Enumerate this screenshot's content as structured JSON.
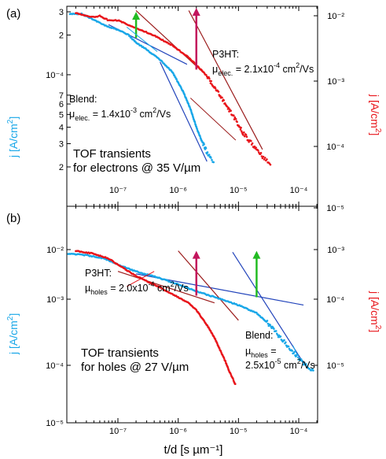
{
  "chart_data": [
    {
      "type": "scatter",
      "panel_label": "(a)",
      "xscale": "log",
      "yscale": "log",
      "xlim": [
        1.5e-08,
        0.0002
      ],
      "ylim_left": [
        1.5e-05,
        0.0003
      ],
      "ylim_right": [
        8e-06,
        0.015
      ],
      "ylabel_left": "j [A/cm²]",
      "ylabel_right": "j [A/cm²]",
      "left_ytick_labels": [
        "2",
        "3",
        "4",
        "5",
        "6",
        "7",
        "10⁻⁴",
        "2",
        "3"
      ],
      "right_ytick_labels": [
        "10⁻⁴",
        "10⁻³",
        "10⁻²"
      ],
      "xtick_labels": [
        "10⁻⁷",
        "10⁻⁶",
        "10⁻⁵",
        "10⁻⁴"
      ],
      "colors": {
        "blend": "#19a7e8",
        "p3ht": "#e8141a",
        "fit_blend": "#2244bb",
        "fit_p3ht": "#9b1c1c",
        "arrow_blend": "#22bb22",
        "arrow_p3ht": "#c3155d"
      },
      "series": [
        {
          "axis": "left",
          "color": "#19a7e8",
          "points": [
            [
              1.6e-08,
              0.00029
            ],
            [
              2.5e-08,
              0.00029
            ],
            [
              4e-08,
              0.00026
            ],
            [
              7e-08,
              0.00023
            ],
            [
              1e-07,
              0.00022
            ],
            [
              1.5e-07,
              0.0002
            ],
            [
              2e-07,
              0.000175
            ],
            [
              3e-07,
              0.000155
            ],
            [
              5e-07,
              0.00013
            ],
            [
              8e-07,
              0.000105
            ],
            [
              1.2e-06,
              7.5e-05
            ],
            [
              1.6e-06,
              5.5e-05
            ],
            [
              2e-06,
              4e-05
            ],
            [
              2.5e-06,
              3.1e-05
            ],
            [
              3e-06,
              2.6e-05
            ],
            [
              3.5e-06,
              2.3e-05
            ],
            [
              4e-06,
              2.2e-05
            ]
          ]
        },
        {
          "axis": "right",
          "color": "#e8141a",
          "points": [
            [
              2e-08,
              0.011
            ],
            [
              3e-08,
              0.01
            ],
            [
              4e-08,
              0.0095
            ],
            [
              5e-08,
              0.01
            ],
            [
              7e-08,
              0.0085
            ],
            [
              1e-07,
              0.0085
            ],
            [
              2e-07,
              0.0065
            ],
            [
              4e-07,
              0.005
            ],
            [
              8e-07,
              0.0035
            ],
            [
              1.5e-06,
              0.0023
            ],
            [
              3e-06,
              0.0012
            ],
            [
              5e-06,
              0.0006
            ],
            [
              8e-06,
              0.0003
            ],
            [
              1.2e-05,
              0.00016
            ],
            [
              1.8e-05,
              0.0001
            ],
            [
              2.5e-05,
              7e-05
            ],
            [
              3.5e-05,
              5.5e-05
            ]
          ]
        }
      ],
      "fit_lines": [
        {
          "name": "blend-fit-1",
          "axis": "left",
          "color": "#2244bb",
          "points": [
            [
              7e-08,
              0.00024
            ],
            [
              1.4e-06,
              0.00012
            ]
          ]
        },
        {
          "name": "blend-fit-2",
          "axis": "left",
          "color": "#2244bb",
          "points": [
            [
              5e-07,
              0.000125
            ],
            [
              3e-06,
              2.2e-05
            ]
          ]
        },
        {
          "name": "p3ht-fit-1",
          "axis": "right",
          "color": "#9b1c1c",
          "points": [
            [
              2e-07,
              0.012
            ],
            [
              2.5e-06,
              0.0014
            ]
          ]
        },
        {
          "name": "p3ht-fit-2",
          "axis": "right",
          "color": "#9b1c1c",
          "points": [
            [
              1.5e-06,
              0.012
            ],
            [
              2.5e-05,
              9e-05
            ]
          ]
        }
      ],
      "annotation_pointers": [
        {
          "color": "#19a7e8",
          "points": [
            [
              4.5e-07,
              0.00015
            ],
            [
              1.4e-07,
              0.00023
            ]
          ]
        },
        {
          "color": "#9b1c1c",
          "points": [
            [
              9e-06,
              0.000125
            ],
            [
              1.6e-06,
              0.00055
            ]
          ]
        }
      ],
      "arrows": [
        {
          "color": "#22bb22",
          "x": 2e-07,
          "y_top": 0.0003,
          "y_bottom": 0.00019,
          "axis": "left"
        },
        {
          "color": "#c3155d",
          "x": 2e-06,
          "y_top": 0.015,
          "y_bottom": 0.0015,
          "axis": "right"
        }
      ],
      "annotations": {
        "p3ht_name": "P3HT:",
        "p3ht_mobility": "μ",
        "p3ht_mobility_sub": "elec.",
        "p3ht_mobility_val": " = 2.1x10",
        "p3ht_mobility_exp": "-4",
        "p3ht_mobility_unit1": " cm",
        "p3ht_mobility_unit_exp": "2",
        "p3ht_mobility_unit2": "/Vs",
        "blend_name": "Blend:",
        "blend_mobility": "μ",
        "blend_mobility_sub": "elec.",
        "blend_mobility_val": " = 1.4x10",
        "blend_mobility_exp": "-3",
        "blend_mobility_unit1": " cm",
        "blend_mobility_unit_exp": "2",
        "blend_mobility_unit2": "/Vs",
        "title_line1": "TOF transients",
        "title_line2": "for electrons @ 35 V/µm"
      }
    },
    {
      "type": "scatter",
      "panel_label": "(b)",
      "xscale": "log",
      "yscale": "log",
      "xlim": [
        1.5e-08,
        0.0002
      ],
      "ylim_left": [
        2.5e-05,
        0.01
      ],
      "ylim_right": [
        2.5e-06,
        1e-05
      ],
      "ylabel_left": "j [A/cm²]",
      "ylabel_right": "j [A/cm²]",
      "left_ytick_labels": [
        "10⁻²",
        "10⁻³",
        "10⁻⁴",
        "10⁻⁵"
      ],
      "right_ytick_labels": [
        "10⁻⁵",
        "10⁻³",
        "10⁻⁴",
        "10⁻⁵"
      ],
      "xtick_labels": [
        "10⁻⁷",
        "10⁻⁶",
        "10⁻⁵",
        "10⁻⁴"
      ],
      "xlabel": "t/d [s µm⁻¹]",
      "series": [
        {
          "axis": "left",
          "color": "#19a7e8",
          "points": [
            [
              1.5e-08,
              0.0085
            ],
            [
              3e-08,
              0.008
            ],
            [
              6e-08,
              0.007
            ],
            [
              1e-07,
              0.0055
            ],
            [
              2e-07,
              0.0042
            ],
            [
              5e-07,
              0.0032
            ],
            [
              1e-06,
              0.0025
            ],
            [
              2e-06,
              0.0019
            ],
            [
              5e-06,
              0.0014
            ],
            [
              1e-05,
              0.0011
            ],
            [
              2e-05,
              0.0008
            ],
            [
              3e-05,
              0.00055
            ],
            [
              5e-05,
              0.0003
            ],
            [
              8e-05,
              0.00017
            ],
            [
              0.00012,
              0.00011
            ],
            [
              0.00018,
              8e-05
            ]
          ]
        },
        {
          "axis": "left",
          "color": "#e8141a",
          "points": [
            [
              2e-08,
              0.0095
            ],
            [
              4e-08,
              0.0085
            ],
            [
              7e-08,
              0.007
            ],
            [
              1e-07,
              0.0055
            ],
            [
              2e-07,
              0.0035
            ],
            [
              5e-07,
              0.0022
            ],
            [
              1e-06,
              0.0015
            ],
            [
              1.5e-06,
              0.0012
            ],
            [
              2e-06,
              0.0009
            ],
            [
              3e-06,
              0.0005
            ],
            [
              4e-06,
              0.0003
            ],
            [
              5e-06,
              0.00018
            ],
            [
              6e-06,
              0.00012
            ],
            [
              7e-06,
              8e-05
            ],
            [
              8e-06,
              6e-05
            ],
            [
              9e-06,
              4.5e-05
            ]
          ]
        }
      ],
      "fit_lines": [
        {
          "name": "blend-fit-1",
          "axis": "left",
          "color": "#2244bb",
          "points": [
            [
              2e-07,
              0.0038
            ],
            [
              0.00012,
              0.0011
            ]
          ]
        },
        {
          "name": "blend-fit-2",
          "axis": "left",
          "color": "#2244bb",
          "points": [
            [
              8e-06,
              0.009
            ],
            [
              0.00012,
              0.00011
            ]
          ]
        },
        {
          "name": "p3ht-fit-1",
          "axis": "left",
          "color": "#9b1c1c",
          "points": [
            [
              1e-07,
              0.0042
            ],
            [
              4e-06,
              0.0012
            ]
          ]
        },
        {
          "name": "p3ht-fit-2",
          "axis": "left",
          "color": "#9b1c1c",
          "points": [
            [
              1e-06,
              0.0095
            ],
            [
              1e-05,
              0.0006
            ]
          ]
        }
      ],
      "annotation_pointers": [
        {
          "color": "#e8141a",
          "points": [
            [
              1.4e-07,
              0.0023
            ],
            [
              4e-07,
              0.0042
            ]
          ]
        },
        {
          "color": "#19a7e8",
          "points": [
            [
              9.5e-05,
              0.00015
            ],
            [
              8e-05,
              0.00022
            ]
          ]
        }
      ],
      "arrows": [
        {
          "color": "#c3155d",
          "x": 2e-06,
          "y_top": 0.0095,
          "y_bottom": 0.0016,
          "axis": "left"
        },
        {
          "color": "#22bb22",
          "x": 2e-05,
          "y_top": 0.0095,
          "y_bottom": 0.0015,
          "axis": "left"
        }
      ],
      "annotations": {
        "p3ht_name": "P3HT:",
        "p3ht_mobility": "µ",
        "p3ht_mobility_sub": "holes",
        "p3ht_mobility_val": " = 2.0x10",
        "p3ht_mobility_exp": "-4",
        "p3ht_mobility_unit1": " cm",
        "p3ht_mobility_unit_exp": "2",
        "p3ht_mobility_unit2": "/Vs",
        "blend_name": "Blend:",
        "blend_mobility": "µ",
        "blend_mobility_sub": "holes",
        "blend_mobility_val": " =",
        "blend_mobility_line2": "2.5x10",
        "blend_mobility_exp": "-5",
        "blend_mobility_unit1": " cm",
        "blend_mobility_unit_exp": "2",
        "blend_mobility_unit2": "/Vs",
        "title_line1": "TOF transients",
        "title_line2": "for holes @ 27 V/µm"
      }
    }
  ]
}
